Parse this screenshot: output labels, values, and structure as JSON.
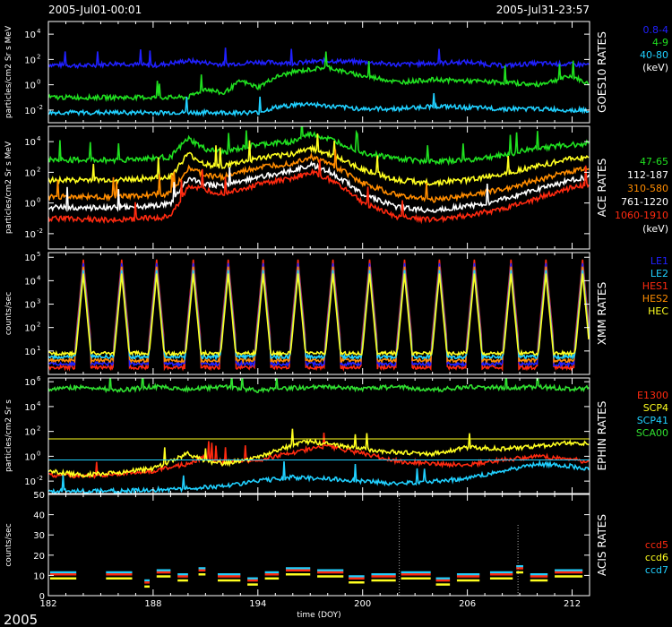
{
  "header": {
    "start": "2005-Jul01-00:01",
    "end": "2005-Jul31-23:57"
  },
  "footer": {
    "year": "2005",
    "xlabel": "time (DOY)"
  },
  "x_axis": {
    "range": [
      182,
      213
    ],
    "ticks": [
      "182",
      "188",
      "194",
      "200",
      "206",
      "212"
    ]
  },
  "colors": {
    "blue": "#2020ff",
    "green": "#20e020",
    "cyan": "#20d0ff",
    "white": "#ffffff",
    "yellow": "#ffff20",
    "orange": "#ff8c00",
    "red": "#ff2a10",
    "lightgreen": "#30e030"
  },
  "chart_data": [
    {
      "type": "line",
      "name": "goes",
      "title": "GOES10 RATES",
      "ylabel": "particles/cm2 Sr s MeV",
      "log": true,
      "ylim": [
        -3,
        5
      ],
      "ticks": [
        {
          "label": "10",
          "exp": "4",
          "v": 4
        },
        {
          "label": "10",
          "exp": "2",
          "v": 2
        },
        {
          "label": "10",
          "exp": "0",
          "v": 0
        },
        {
          "label": "10",
          "exp": "-2",
          "v": -2
        }
      ],
      "legend": [
        {
          "text": "0.8-4",
          "color": "blue"
        },
        {
          "text": "4-9",
          "color": "green"
        },
        {
          "text": "40-80",
          "color": "cyan"
        },
        {
          "text": "(keV)",
          "color": "white"
        }
      ],
      "series": [
        {
          "color": "blue",
          "x": [
            182,
            184,
            186,
            188,
            190,
            192,
            194,
            196,
            198,
            200,
            202,
            204,
            206,
            208,
            210,
            212,
            213
          ],
          "y": [
            1.6,
            1.5,
            1.7,
            1.5,
            1.9,
            1.6,
            1.8,
            1.7,
            1.9,
            1.8,
            1.6,
            1.7,
            1.8,
            1.5,
            1.7,
            1.6,
            1.6
          ]
        },
        {
          "color": "green",
          "x": [
            182,
            184,
            186,
            188,
            190,
            191,
            192,
            193,
            194,
            195,
            196,
            197,
            198,
            199,
            200,
            201,
            202,
            204,
            206,
            208,
            210,
            212,
            213
          ],
          "y": [
            -1.0,
            -1.0,
            -1.0,
            -1.0,
            -1.0,
            -0.3,
            -0.7,
            0.3,
            -0.2,
            0.6,
            1.0,
            1.2,
            1.4,
            1.0,
            0.7,
            0.5,
            0.2,
            0.4,
            0.3,
            0.2,
            0.0,
            0.7,
            0.0
          ]
        },
        {
          "color": "cyan",
          "x": [
            182,
            186,
            190,
            194,
            195,
            196,
            197,
            198,
            200,
            202,
            204,
            206,
            208,
            210,
            212,
            213
          ],
          "y": [
            -2.2,
            -2.2,
            -2.2,
            -2.2,
            -1.8,
            -1.6,
            -1.5,
            -1.7,
            -1.9,
            -1.9,
            -1.7,
            -1.8,
            -1.9,
            -1.9,
            -2.0,
            -2.0
          ]
        }
      ]
    },
    {
      "type": "line",
      "name": "ace",
      "title": "ACE RATES",
      "ylabel": "particles/cm2 Sr s MeV",
      "log": true,
      "ylim": [
        -3,
        5
      ],
      "ticks": [
        {
          "label": "10",
          "exp": "4",
          "v": 4
        },
        {
          "label": "10",
          "exp": "2",
          "v": 2
        },
        {
          "label": "10",
          "exp": "0",
          "v": 0
        },
        {
          "label": "10",
          "exp": "-2",
          "v": -2
        }
      ],
      "legend": [
        {
          "text": "47-65",
          "color": "green"
        },
        {
          "text": "112-187",
          "color": "white"
        },
        {
          "text": "310-580",
          "color": "orange"
        },
        {
          "text": "761-1220",
          "color": "white"
        },
        {
          "text": "1060-1910",
          "color": "red"
        },
        {
          "text": "(keV)",
          "color": "white"
        }
      ],
      "series": [
        {
          "color": "green",
          "x": [
            182,
            186,
            189,
            190,
            191,
            192,
            194,
            196,
            197,
            198,
            199,
            200,
            202,
            204,
            206,
            208,
            210,
            212,
            213
          ],
          "y": [
            2.8,
            2.8,
            3.0,
            4.2,
            3.5,
            3.3,
            3.8,
            4.0,
            4.5,
            4.2,
            3.8,
            3.3,
            2.9,
            2.7,
            2.8,
            3.1,
            3.6,
            3.8,
            3.9
          ]
        },
        {
          "color": "yellow",
          "x": [
            182,
            186,
            189,
            190,
            191,
            192,
            194,
            196,
            197,
            198,
            199,
            200,
            202,
            204,
            206,
            208,
            210,
            212,
            213
          ],
          "y": [
            1.5,
            1.5,
            1.7,
            3.2,
            2.5,
            2.4,
            2.9,
            3.2,
            3.6,
            3.2,
            2.7,
            2.2,
            1.5,
            1.3,
            1.5,
            1.9,
            2.4,
            2.9,
            3.0
          ]
        },
        {
          "color": "orange",
          "x": [
            182,
            186,
            189,
            190,
            191,
            192,
            194,
            196,
            197,
            198,
            199,
            200,
            202,
            204,
            206,
            208,
            210,
            212,
            213
          ],
          "y": [
            0.4,
            0.4,
            0.6,
            2.3,
            1.8,
            1.7,
            2.3,
            2.6,
            3.0,
            2.6,
            2.0,
            1.3,
            0.5,
            0.2,
            0.5,
            0.9,
            1.5,
            2.1,
            2.3
          ]
        },
        {
          "color": "white",
          "x": [
            182,
            186,
            189,
            190,
            191,
            192,
            194,
            196,
            197,
            198,
            199,
            200,
            202,
            204,
            206,
            208,
            210,
            212,
            213
          ],
          "y": [
            -0.3,
            -0.3,
            -0.1,
            1.6,
            1.2,
            1.1,
            1.7,
            2.1,
            2.5,
            2.1,
            1.4,
            0.6,
            -0.3,
            -0.5,
            -0.2,
            0.2,
            0.9,
            1.5,
            1.7
          ]
        },
        {
          "color": "red",
          "x": [
            182,
            186,
            189,
            190,
            191,
            192,
            194,
            196,
            197,
            198,
            199,
            200,
            202,
            204,
            206,
            208,
            210,
            212,
            213
          ],
          "y": [
            -1.0,
            -1.1,
            -0.9,
            1.1,
            0.8,
            0.6,
            1.2,
            1.6,
            2.0,
            1.6,
            0.9,
            0.0,
            -0.9,
            -1.1,
            -0.8,
            -0.4,
            0.3,
            1.0,
            1.2
          ]
        }
      ]
    },
    {
      "type": "line",
      "name": "xmm",
      "title": "XMM RATES",
      "ylabel": "counts/sec",
      "log": true,
      "ylim": [
        0,
        5.2
      ],
      "ticks": [
        {
          "label": "10",
          "exp": "5",
          "v": 5
        },
        {
          "label": "10",
          "exp": "4",
          "v": 4
        },
        {
          "label": "10",
          "exp": "3",
          "v": 3
        },
        {
          "label": "10",
          "exp": "2",
          "v": 2
        },
        {
          "label": "10",
          "exp": "1",
          "v": 1
        }
      ],
      "legend": [
        {
          "text": "LE1",
          "color": "blue"
        },
        {
          "text": "LE2",
          "color": "cyan"
        },
        {
          "text": "HES1",
          "color": "red"
        },
        {
          "text": "HES2",
          "color": "orange"
        },
        {
          "text": "HEC",
          "color": "yellow"
        }
      ],
      "peaks": [
        184,
        186.2,
        188.2,
        190.3,
        192.3,
        194.3,
        196.3,
        198.3,
        200.4,
        202.4,
        204.4,
        206.4,
        208.5,
        210.5,
        212.6
      ],
      "base": 0.3,
      "peak": 4.9
    },
    {
      "type": "line",
      "name": "ephin",
      "title": "EPHIN RATES",
      "ylabel": "particles/cm2 Sr s",
      "log": true,
      "ylim": [
        -3,
        6.3
      ],
      "ticks": [
        {
          "label": "10",
          "exp": "6",
          "v": 6
        },
        {
          "label": "10",
          "exp": "4",
          "v": 4
        },
        {
          "label": "10",
          "exp": "2",
          "v": 2
        },
        {
          "label": "10",
          "exp": "0",
          "v": 0
        },
        {
          "label": "10",
          "exp": "-2",
          "v": -2
        }
      ],
      "legend": [
        {
          "text": "E1300",
          "color": "red"
        },
        {
          "text": "SCP4",
          "color": "yellow"
        },
        {
          "text": "SCP41",
          "color": "cyan"
        },
        {
          "text": "SCA00",
          "color": "lightgreen"
        }
      ],
      "hlines": [
        {
          "v": 1.4,
          "color": "yellow"
        },
        {
          "v": -0.3,
          "color": "cyan"
        }
      ],
      "series": [
        {
          "color": "lightgreen",
          "x": [
            182,
            184,
            186,
            188,
            190,
            192,
            194,
            196,
            198,
            200,
            202,
            204,
            206,
            208,
            210,
            212,
            213
          ],
          "y": [
            5.4,
            5.6,
            5.3,
            5.6,
            5.4,
            5.6,
            5.3,
            5.5,
            5.6,
            5.4,
            5.6,
            5.3,
            5.6,
            5.5,
            5.6,
            5.4,
            5.5
          ]
        },
        {
          "color": "red",
          "x": [
            182,
            184,
            186,
            188,
            190,
            191,
            192,
            194,
            196,
            197,
            198,
            200,
            202,
            204,
            206,
            208,
            210,
            212,
            213
          ],
          "y": [
            -1.5,
            -1.6,
            -1.4,
            -1.2,
            -0.6,
            0.0,
            -0.5,
            -0.3,
            0.3,
            0.6,
            0.8,
            0.2,
            -0.4,
            -0.6,
            -0.7,
            -0.3,
            0.0,
            -0.2,
            -0.5
          ]
        },
        {
          "color": "yellow",
          "x": [
            182,
            184,
            186,
            188,
            190,
            191,
            192,
            194,
            196,
            197,
            198,
            200,
            202,
            204,
            206,
            208,
            210,
            212,
            213
          ],
          "y": [
            -1.2,
            -1.5,
            -1.3,
            -1.0,
            0.2,
            -0.4,
            -0.6,
            -0.1,
            0.9,
            1.2,
            1.0,
            0.6,
            0.3,
            0.2,
            0.7,
            0.6,
            0.8,
            1.1,
            1.0
          ]
        },
        {
          "color": "cyan",
          "x": [
            182,
            186,
            190,
            192,
            194,
            196,
            198,
            200,
            202,
            204,
            206,
            208,
            210,
            212,
            213
          ],
          "y": [
            -2.8,
            -2.8,
            -2.6,
            -2.4,
            -2.0,
            -1.7,
            -1.8,
            -2.0,
            -2.2,
            -2.0,
            -1.8,
            -1.2,
            -0.6,
            -0.8,
            -1.1
          ]
        }
      ]
    },
    {
      "type": "scatter",
      "name": "acis",
      "title": "ACIS RATES",
      "ylabel": "counts/sec",
      "log": false,
      "ylim": [
        0,
        50
      ],
      "ticks": [
        {
          "label": "50",
          "exp": "",
          "v": 50
        },
        {
          "label": "40",
          "exp": "",
          "v": 40
        },
        {
          "label": "30",
          "exp": "",
          "v": 30
        },
        {
          "label": "20",
          "exp": "",
          "v": 20
        },
        {
          "label": "10",
          "exp": "",
          "v": 10
        },
        {
          "label": "0",
          "exp": "",
          "v": 0
        }
      ],
      "legend": [
        {
          "text": "ccd5",
          "color": "red"
        },
        {
          "text": "ccd6",
          "color": "yellow"
        },
        {
          "text": "ccd7",
          "color": "cyan"
        }
      ],
      "segments": [
        {
          "x0": 182.1,
          "x1": 183.6,
          "y": 10
        },
        {
          "x0": 185.3,
          "x1": 186.8,
          "y": 10
        },
        {
          "x0": 187.5,
          "x1": 187.8,
          "y": 6
        },
        {
          "x0": 188.2,
          "x1": 189.0,
          "y": 11
        },
        {
          "x0": 189.4,
          "x1": 190.0,
          "y": 9
        },
        {
          "x0": 190.6,
          "x1": 191.0,
          "y": 12
        },
        {
          "x0": 191.7,
          "x1": 193.0,
          "y": 9
        },
        {
          "x0": 193.4,
          "x1": 194.0,
          "y": 7
        },
        {
          "x0": 194.4,
          "x1": 195.2,
          "y": 10
        },
        {
          "x0": 195.6,
          "x1": 197.0,
          "y": 12
        },
        {
          "x0": 197.4,
          "x1": 198.9,
          "y": 11
        },
        {
          "x0": 199.2,
          "x1": 200.1,
          "y": 8
        },
        {
          "x0": 200.5,
          "x1": 201.9,
          "y": 9
        },
        {
          "x0": 202.2,
          "x1": 203.9,
          "y": 10
        },
        {
          "x0": 204.2,
          "x1": 205.0,
          "y": 7
        },
        {
          "x0": 205.4,
          "x1": 206.7,
          "y": 9
        },
        {
          "x0": 207.3,
          "x1": 208.6,
          "y": 10
        },
        {
          "x0": 208.8,
          "x1": 209.2,
          "y": 13
        },
        {
          "x0": 209.6,
          "x1": 210.6,
          "y": 9
        },
        {
          "x0": 211.0,
          "x1": 212.6,
          "y": 11
        }
      ],
      "spikes": [
        {
          "x": 202.1,
          "y": 50
        },
        {
          "x": 208.9,
          "y": 35
        }
      ]
    }
  ]
}
